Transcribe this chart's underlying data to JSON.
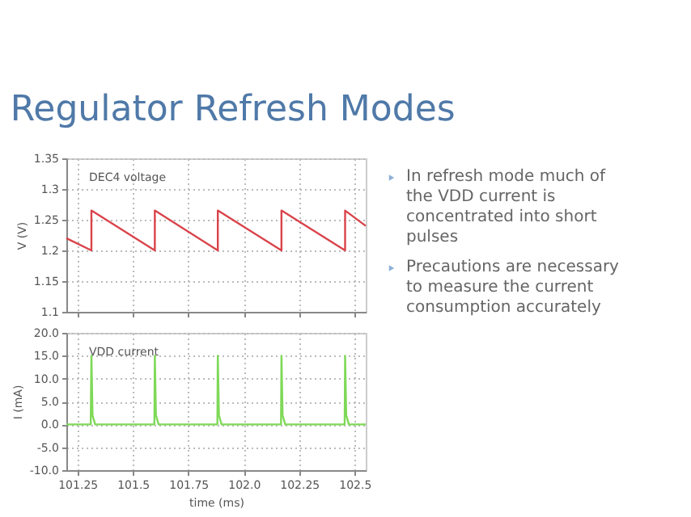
{
  "chart_data": [
    {
      "type": "line",
      "title": "Regulator Refresh Modes",
      "ylabel": "V (V)",
      "annotations": [
        "DEC4 voltage",
        "In refresh mode much of the VDD current is concentrated into short pulses",
        "Precautions are necessary to measure the current consumption accurately"
      ],
      "x": [
        101.2,
        101.313,
        101.313,
        101.599,
        101.599,
        101.883,
        101.883,
        102.17,
        102.17,
        102.457,
        102.457,
        102.55
      ],
      "series": [
        {
          "color": "#d9434a",
          "values": [
            1.22,
            1.2,
            1.265,
            1.2,
            1.265,
            1.2,
            1.265,
            1.2,
            1.265,
            1.2,
            1.265,
            1.24
          ]
        }
      ],
      "xlim": [
        101.2,
        102.55
      ],
      "ylim": [
        1.1,
        1.35
      ],
      "yticks": [
        1.1,
        1.15,
        1.2,
        1.25,
        1.3,
        1.35
      ],
      "xticks": [
        101.25,
        101.5,
        101.75,
        102.0,
        102.25,
        102.5
      ],
      "grid": true,
      "tick_labels": "y"
    },
    {
      "type": "line",
      "xlabel": "time (ms)",
      "ylabel": "I (mA)",
      "annotations": [
        "VDD current"
      ],
      "x": [
        101.2,
        101.31,
        101.313,
        101.318,
        101.33,
        101.597,
        101.599,
        101.604,
        101.616,
        101.881,
        101.883,
        101.888,
        101.9,
        102.168,
        102.17,
        102.175,
        102.187,
        102.455,
        102.457,
        102.462,
        102.474,
        102.55
      ],
      "series": [
        {
          "color": "#7ed957",
          "values": [
            0,
            0,
            15,
            2,
            0,
            0,
            15,
            2,
            0,
            0,
            15,
            2,
            0,
            0,
            15,
            2,
            0,
            0,
            15,
            2,
            0,
            0
          ]
        }
      ],
      "xlim": [
        101.2,
        102.55
      ],
      "ylim": [
        -10,
        20
      ],
      "yticks": [
        {
          "value": -10,
          "label": "-10.0"
        },
        {
          "value": -5,
          "label": "-5.0"
        },
        {
          "value": 0,
          "label": "0.0"
        },
        {
          "value": 5,
          "label": "5.0"
        },
        {
          "value": 10,
          "label": "10.0"
        },
        {
          "value": 15,
          "label": "15.0"
        },
        {
          "value": 20,
          "label": "20.0"
        }
      ],
      "xticks": [
        101.25,
        101.5,
        101.75,
        {
          "value": 102.0,
          "label": "102.0"
        },
        102.25,
        102.5
      ],
      "grid": true
    }
  ]
}
